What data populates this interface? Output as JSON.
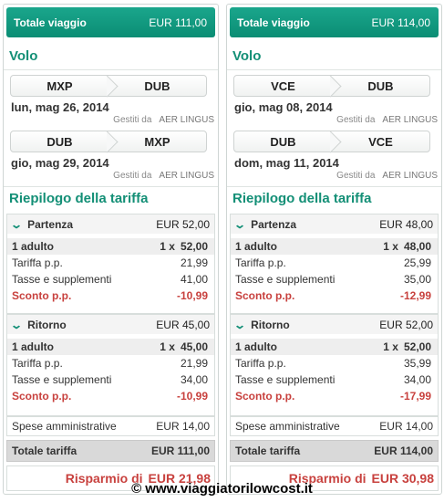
{
  "panels": [
    {
      "total_label": "Totale viaggio",
      "total_value": "EUR 111,00",
      "flight_title": "Volo",
      "flights": [
        {
          "from": "MXP",
          "to": "DUB",
          "date": "lun, mag 26, 2014",
          "operated_label": "Gestiti da",
          "airline": "AER LINGUS"
        },
        {
          "from": "DUB",
          "to": "MXP",
          "date": "gio, mag 29, 2014",
          "operated_label": "Gestiti da",
          "airline": "AER LINGUS"
        }
      ],
      "summary_title": "Riepilogo della tariffa",
      "legs": [
        {
          "label": "Partenza",
          "amount": "EUR 52,00",
          "adult_label": "1 adulto",
          "adult_mult": "1 x",
          "adult_value": "52,00",
          "fare_label": "Tariffa p.p.",
          "fare_value": "21,99",
          "tax_label": "Tasse e supplementi",
          "tax_value": "41,00",
          "discount_label": "Sconto p.p.",
          "discount_value": "-10,99"
        },
        {
          "label": "Ritorno",
          "amount": "EUR 45,00",
          "adult_label": "1 adulto",
          "adult_mult": "1 x",
          "adult_value": "45,00",
          "fare_label": "Tariffa p.p.",
          "fare_value": "21,99",
          "tax_label": "Tasse e supplementi",
          "tax_value": "34,00",
          "discount_label": "Sconto p.p.",
          "discount_value": "-10,99"
        }
      ],
      "admin_label": "Spese amministrative",
      "admin_value": "EUR 14,00",
      "fare_total_label": "Totale tariffa",
      "fare_total_value": "EUR 111,00",
      "savings_label": "Risparmio di",
      "savings_value": "EUR 21,98"
    },
    {
      "total_label": "Totale viaggio",
      "total_value": "EUR 114,00",
      "flight_title": "Volo",
      "flights": [
        {
          "from": "VCE",
          "to": "DUB",
          "date": "gio, mag 08, 2014",
          "operated_label": "Gestiti da",
          "airline": "AER LINGUS"
        },
        {
          "from": "DUB",
          "to": "VCE",
          "date": "dom, mag 11, 2014",
          "operated_label": "Gestiti da",
          "airline": "AER LINGUS"
        }
      ],
      "summary_title": "Riepilogo della tariffa",
      "legs": [
        {
          "label": "Partenza",
          "amount": "EUR 48,00",
          "adult_label": "1 adulto",
          "adult_mult": "1 x",
          "adult_value": "48,00",
          "fare_label": "Tariffa p.p.",
          "fare_value": "25,99",
          "tax_label": "Tasse e supplementi",
          "tax_value": "35,00",
          "discount_label": "Sconto p.p.",
          "discount_value": "-12,99"
        },
        {
          "label": "Ritorno",
          "amount": "EUR 52,00",
          "adult_label": "1 adulto",
          "adult_mult": "1 x",
          "adult_value": "52,00",
          "fare_label": "Tariffa p.p.",
          "fare_value": "35,99",
          "tax_label": "Tasse e supplementi",
          "tax_value": "34,00",
          "discount_label": "Sconto p.p.",
          "discount_value": "-17,99"
        }
      ],
      "admin_label": "Spese amministrative",
      "admin_value": "EUR 14,00",
      "fare_total_label": "Totale tariffa",
      "fare_total_value": "EUR 114,00",
      "savings_label": "Risparmio di",
      "savings_value": "EUR 30,98"
    }
  ],
  "watermark": "© www.viaggiatorilowcost.it",
  "icons": {
    "collapse": "chevron-down-icon",
    "route_separator": "chevron-right-icon"
  },
  "colors": {
    "accent": "#138f76",
    "header_bar": "#0b8d74",
    "discount": "#c8413e",
    "total_row": "#d9d9d9"
  }
}
